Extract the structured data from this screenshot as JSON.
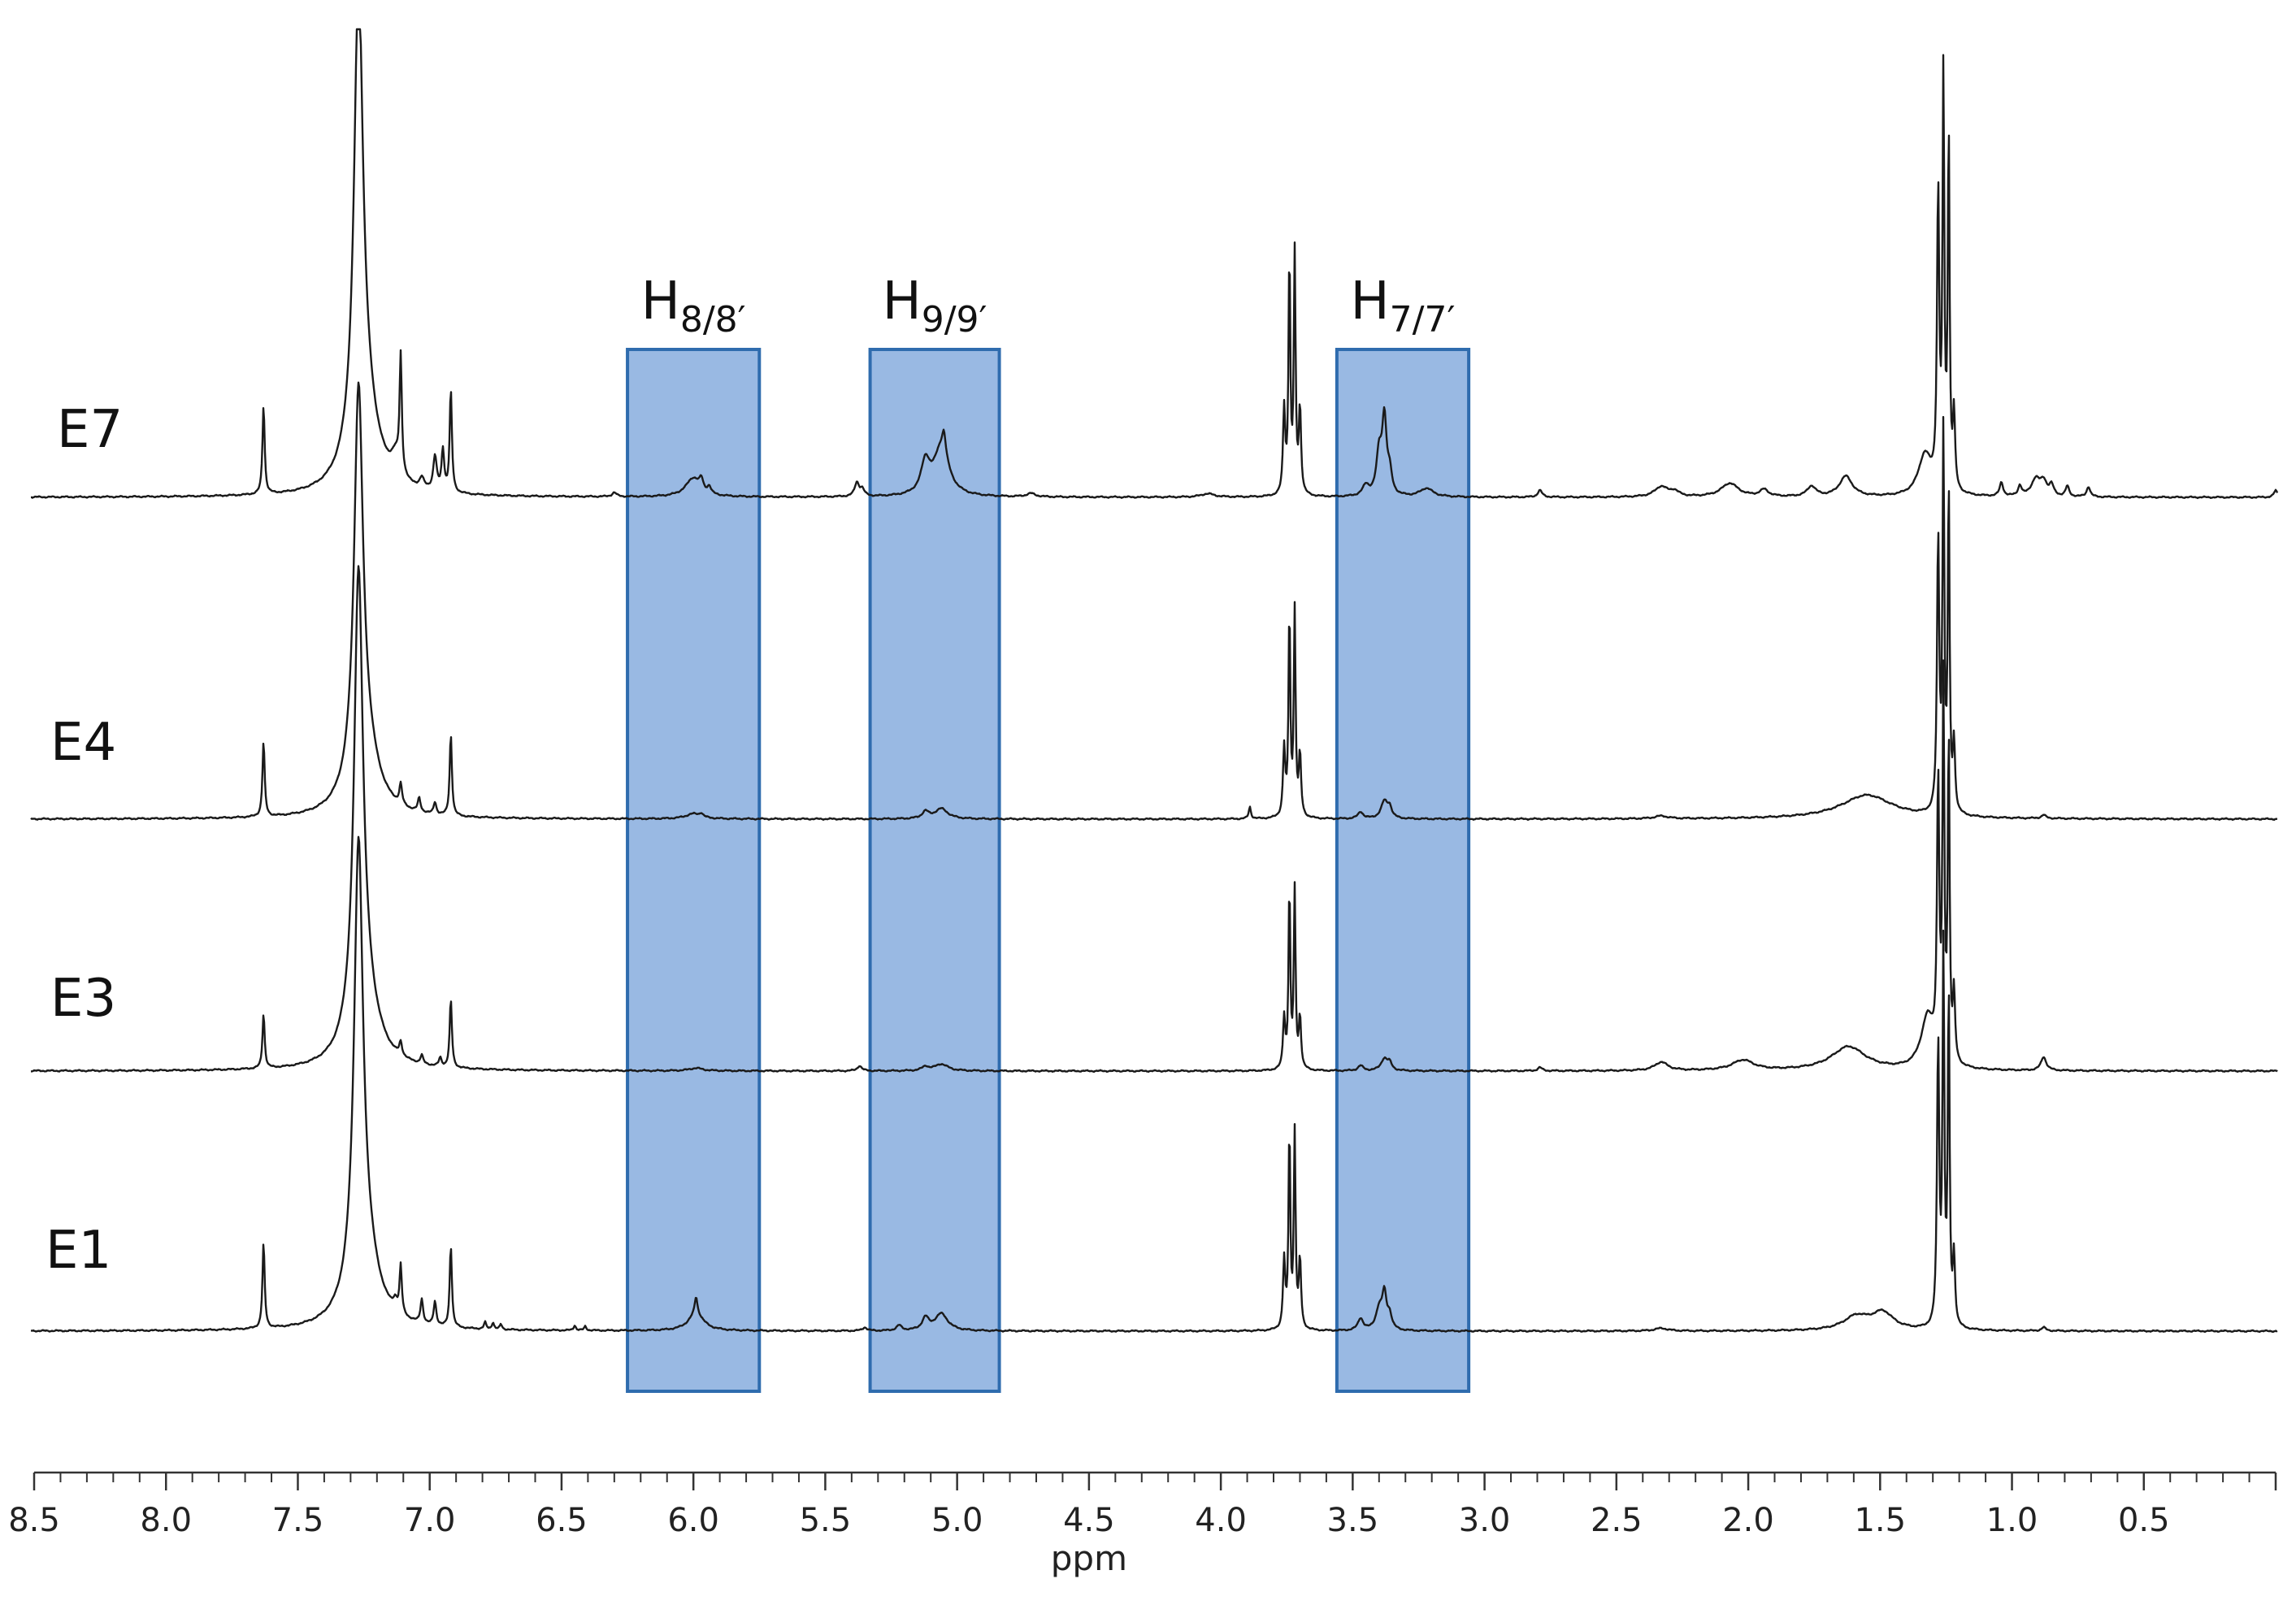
{
  "chart_data": {
    "type": "line",
    "xlabel": "ppm",
    "ylabel": "",
    "xlim": [
      8.5,
      0.0
    ],
    "x_reversed": true,
    "grid": false,
    "xticks": [
      "8.5",
      "8.0",
      "7.5",
      "7.0",
      "6.5",
      "6.0",
      "5.5",
      "5.0",
      "4.5",
      "4.0",
      "3.5",
      "3.0",
      "2.5",
      "2.0",
      "1.5",
      "1.0",
      "0.5"
    ],
    "colors": {
      "trace": "#1a1a1a",
      "region_fill": "#99b9e3",
      "region_stroke": "#2f6cae"
    },
    "regions": [
      {
        "main": "H",
        "sub": "8/8′",
        "x_start": 6.25,
        "x_end": 5.75
      },
      {
        "main": "H",
        "sub": "9/9′",
        "x_start": 5.33,
        "x_end": 4.84
      },
      {
        "main": "H",
        "sub": "7/7′",
        "x_start": 3.56,
        "x_end": 3.06
      }
    ],
    "series": [
      {
        "name": "E7",
        "peaks": [
          [
            7.63,
            0.26,
            0.005
          ],
          [
            7.27,
            1.3,
            0.02
          ],
          [
            7.25,
            0.25,
            0.06
          ],
          [
            7.13,
            0.06,
            0.02
          ],
          [
            7.11,
            0.34,
            0.005
          ],
          [
            7.03,
            0.03,
            0.01
          ],
          [
            6.98,
            0.1,
            0.008
          ],
          [
            6.95,
            0.12,
            0.006
          ],
          [
            6.92,
            0.3,
            0.005
          ],
          [
            6.3,
            0.012,
            0.01
          ],
          [
            6.0,
            0.055,
            0.035
          ],
          [
            5.97,
            0.03,
            0.008
          ],
          [
            5.94,
            0.02,
            0.008
          ],
          [
            5.38,
            0.04,
            0.01
          ],
          [
            5.36,
            0.02,
            0.01
          ],
          [
            5.12,
            0.09,
            0.02
          ],
          [
            5.06,
            0.14,
            0.035
          ],
          [
            5.05,
            0.06,
            0.008
          ],
          [
            4.72,
            0.01,
            0.02
          ],
          [
            4.05,
            0.01,
            0.03
          ],
          [
            3.76,
            0.25,
            0.005
          ],
          [
            3.74,
            0.7,
            0.004
          ],
          [
            3.72,
            0.7,
            0.004
          ],
          [
            3.7,
            0.25,
            0.005
          ],
          [
            3.45,
            0.03,
            0.015
          ],
          [
            3.4,
            0.12,
            0.012
          ],
          [
            3.38,
            0.22,
            0.01
          ],
          [
            3.36,
            0.06,
            0.01
          ],
          [
            3.22,
            0.025,
            0.03
          ],
          [
            2.79,
            0.02,
            0.01
          ],
          [
            2.33,
            0.03,
            0.03
          ],
          [
            2.28,
            0.015,
            0.02
          ],
          [
            2.07,
            0.04,
            0.04
          ],
          [
            1.94,
            0.02,
            0.02
          ],
          [
            1.76,
            0.03,
            0.02
          ],
          [
            1.63,
            0.06,
            0.03
          ],
          [
            1.33,
            0.12,
            0.03
          ],
          [
            1.28,
            0.86,
            0.005
          ],
          [
            1.26,
            1.2,
            0.004
          ],
          [
            1.24,
            1.05,
            0.004
          ],
          [
            1.22,
            0.22,
            0.005
          ],
          [
            1.04,
            0.04,
            0.008
          ],
          [
            0.97,
            0.03,
            0.008
          ],
          [
            0.91,
            0.05,
            0.02
          ],
          [
            0.88,
            0.04,
            0.015
          ],
          [
            0.85,
            0.03,
            0.01
          ],
          [
            0.79,
            0.03,
            0.008
          ],
          [
            0.71,
            0.03,
            0.008
          ],
          [
            0.0,
            0.02,
            0.008
          ]
        ]
      },
      {
        "name": "E4",
        "peaks": [
          [
            7.63,
            0.22,
            0.005
          ],
          [
            7.27,
            1.1,
            0.02
          ],
          [
            7.25,
            0.2,
            0.06
          ],
          [
            7.11,
            0.06,
            0.006
          ],
          [
            7.04,
            0.04,
            0.006
          ],
          [
            6.98,
            0.035,
            0.006
          ],
          [
            6.92,
            0.24,
            0.005
          ],
          [
            6.0,
            0.015,
            0.035
          ],
          [
            5.97,
            0.01,
            0.008
          ],
          [
            5.12,
            0.02,
            0.015
          ],
          [
            5.06,
            0.03,
            0.03
          ],
          [
            3.89,
            0.035,
            0.005
          ],
          [
            3.76,
            0.2,
            0.005
          ],
          [
            3.74,
            0.6,
            0.004
          ],
          [
            3.72,
            0.6,
            0.004
          ],
          [
            3.7,
            0.18,
            0.005
          ],
          [
            3.47,
            0.02,
            0.012
          ],
          [
            3.38,
            0.05,
            0.015
          ],
          [
            3.36,
            0.03,
            0.01
          ],
          [
            2.33,
            0.008,
            0.03
          ],
          [
            1.55,
            0.07,
            0.12
          ],
          [
            1.28,
            0.8,
            0.005
          ],
          [
            1.26,
            1.1,
            0.004
          ],
          [
            1.24,
            0.95,
            0.004
          ],
          [
            1.22,
            0.2,
            0.005
          ],
          [
            0.88,
            0.01,
            0.01
          ]
        ]
      },
      {
        "name": "E3",
        "peaks": [
          [
            7.63,
            0.16,
            0.005
          ],
          [
            7.27,
            1.3,
            0.02
          ],
          [
            7.25,
            0.2,
            0.06
          ],
          [
            7.11,
            0.04,
            0.006
          ],
          [
            7.03,
            0.025,
            0.006
          ],
          [
            6.96,
            0.025,
            0.006
          ],
          [
            6.92,
            0.2,
            0.005
          ],
          [
            5.99,
            0.008,
            0.03
          ],
          [
            5.37,
            0.015,
            0.01
          ],
          [
            5.12,
            0.012,
            0.015
          ],
          [
            5.06,
            0.02,
            0.03
          ],
          [
            3.76,
            0.15,
            0.005
          ],
          [
            3.74,
            0.53,
            0.004
          ],
          [
            3.72,
            0.52,
            0.004
          ],
          [
            3.7,
            0.15,
            0.005
          ],
          [
            3.47,
            0.015,
            0.012
          ],
          [
            3.38,
            0.035,
            0.015
          ],
          [
            3.36,
            0.02,
            0.01
          ],
          [
            2.79,
            0.01,
            0.01
          ],
          [
            2.33,
            0.025,
            0.03
          ],
          [
            2.02,
            0.03,
            0.05
          ],
          [
            1.62,
            0.07,
            0.08
          ],
          [
            1.32,
            0.15,
            0.03
          ],
          [
            1.28,
            0.8,
            0.005
          ],
          [
            1.26,
            1.1,
            0.004
          ],
          [
            1.24,
            0.95,
            0.004
          ],
          [
            1.22,
            0.2,
            0.005
          ],
          [
            0.88,
            0.04,
            0.012
          ]
        ]
      },
      {
        "name": "E1",
        "peaks": [
          [
            7.63,
            0.25,
            0.005
          ],
          [
            7.27,
            1.25,
            0.02
          ],
          [
            7.25,
            0.22,
            0.06
          ],
          [
            7.13,
            0.03,
            0.01
          ],
          [
            7.11,
            0.14,
            0.005
          ],
          [
            7.03,
            0.07,
            0.006
          ],
          [
            6.98,
            0.07,
            0.006
          ],
          [
            6.92,
            0.24,
            0.005
          ],
          [
            6.79,
            0.02,
            0.005
          ],
          [
            6.76,
            0.02,
            0.005
          ],
          [
            6.73,
            0.015,
            0.005
          ],
          [
            6.45,
            0.015,
            0.005
          ],
          [
            6.41,
            0.012,
            0.005
          ],
          [
            5.99,
            0.05,
            0.035
          ],
          [
            5.99,
            0.05,
            0.006
          ],
          [
            5.35,
            0.01,
            0.01
          ],
          [
            5.22,
            0.015,
            0.012
          ],
          [
            5.12,
            0.035,
            0.015
          ],
          [
            5.06,
            0.05,
            0.03
          ],
          [
            3.76,
            0.2,
            0.005
          ],
          [
            3.74,
            0.58,
            0.004
          ],
          [
            3.72,
            0.57,
            0.004
          ],
          [
            3.7,
            0.2,
            0.005
          ],
          [
            3.47,
            0.035,
            0.012
          ],
          [
            3.4,
            0.06,
            0.015
          ],
          [
            3.38,
            0.1,
            0.01
          ],
          [
            3.36,
            0.04,
            0.01
          ],
          [
            2.33,
            0.008,
            0.03
          ],
          [
            1.59,
            0.04,
            0.06
          ],
          [
            1.49,
            0.05,
            0.05
          ],
          [
            1.28,
            0.83,
            0.005
          ],
          [
            1.26,
            1.1,
            0.004
          ],
          [
            1.24,
            0.98,
            0.004
          ],
          [
            1.22,
            0.2,
            0.005
          ],
          [
            0.88,
            0.01,
            0.01
          ]
        ]
      }
    ]
  }
}
